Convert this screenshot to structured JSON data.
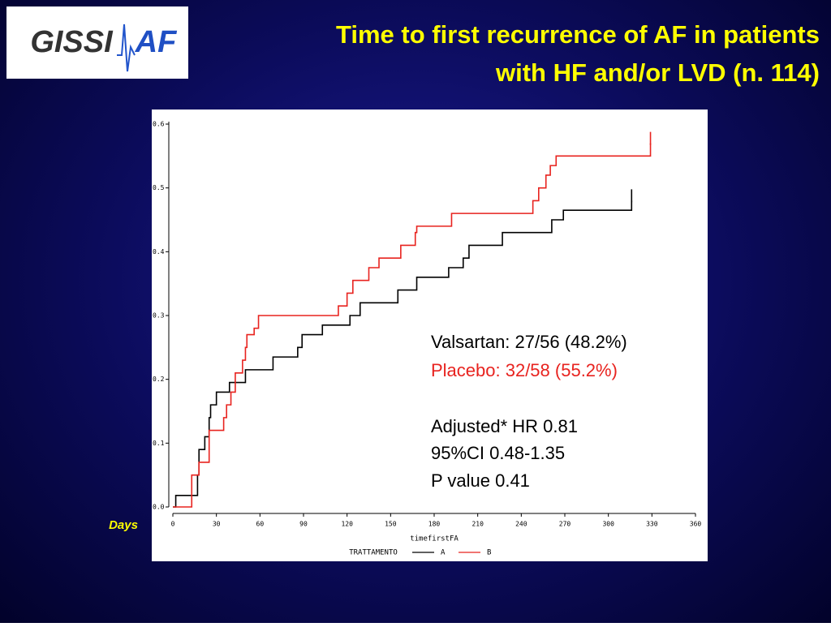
{
  "logo": {
    "left": "GISSI",
    "right": "AF"
  },
  "chart_data": {
    "type": "step",
    "title": [
      "Time to first recurrence of AF in patients",
      "with HF and/or LVD (n. 114)"
    ],
    "days_label": "Days",
    "x_label": "timefirstFA",
    "legend_title": "TRATTAMENTO",
    "xlim": [
      0,
      360
    ],
    "xticks": [
      0,
      30,
      60,
      90,
      120,
      150,
      180,
      210,
      240,
      270,
      300,
      330,
      360
    ],
    "ylim": [
      0,
      0.6
    ],
    "yticks": [
      {
        "value": 0,
        "label": "0.0"
      },
      0.1,
      0.2,
      0.3,
      0.4,
      0.5,
      0.6
    ],
    "series": [
      {
        "name": "A",
        "color": "#000000",
        "x": [
          0,
          2,
          17,
          18,
          22,
          25,
          26,
          30,
          39,
          50,
          69,
          86,
          89,
          103,
          122,
          129,
          155,
          168,
          190,
          200,
          204,
          227,
          261,
          269,
          316
        ],
        "values": [
          0,
          0.018,
          0.05,
          0.09,
          0.11,
          0.14,
          0.16,
          0.18,
          0.195,
          0.215,
          0.235,
          0.25,
          0.27,
          0.285,
          0.3,
          0.32,
          0.34,
          0.36,
          0.375,
          0.39,
          0.41,
          0.43,
          0.45,
          0.465,
          0.48
        ]
      },
      {
        "name": "B",
        "color": "#e8231f",
        "x": [
          0,
          13,
          18,
          25,
          35,
          37,
          40,
          43,
          48,
          50,
          51,
          56,
          59,
          114,
          120,
          124,
          135,
          142,
          157,
          167,
          168,
          192,
          248,
          252,
          257,
          260,
          264,
          329
        ],
        "values": [
          0,
          0.05,
          0.07,
          0.12,
          0.14,
          0.16,
          0.18,
          0.21,
          0.23,
          0.25,
          0.27,
          0.28,
          0.3,
          0.315,
          0.335,
          0.355,
          0.375,
          0.39,
          0.41,
          0.43,
          0.44,
          0.46,
          0.48,
          0.5,
          0.52,
          0.535,
          0.55,
          0.57
        ]
      }
    ],
    "annotations": [
      {
        "text": "Valsartan: 27/56 (48.2%)",
        "color": "#000000"
      },
      {
        "text": "Placebo: 32/58 (55.2%)",
        "color": "#e8231f"
      },
      {
        "text": "Adjusted* HR 0.81",
        "color": "#000000"
      },
      {
        "text": "95%CI 0.48-1.35",
        "color": "#000000"
      },
      {
        "text": "P value 0.41",
        "color": "#000000"
      }
    ]
  }
}
